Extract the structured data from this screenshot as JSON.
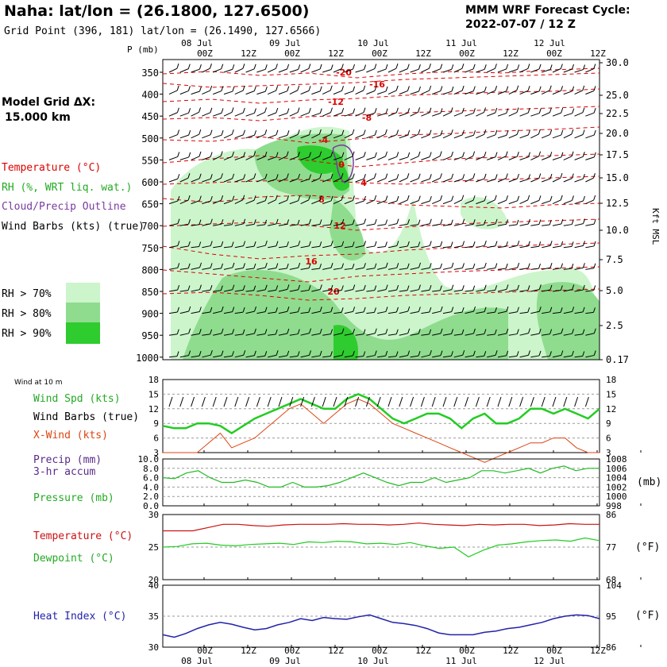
{
  "header": {
    "station_title": "Naha:  lat/lon = (26.1800, 127.6500)",
    "grid_point": "Grid Point (396, 181) lat/lon = (26.1490, 127.6566)",
    "forecast_title": "MMM WRF Forecast Cycle:",
    "forecast_cycle": "2022-07-07 / 12  Z",
    "model_grid_label": "Model Grid ΔX:",
    "model_grid_value": "15.000 km"
  },
  "legend": {
    "temperature": "Temperature (°C)",
    "rh": "RH (%, WRT liq. wat.)",
    "cloud": "Cloud/Precip Outline",
    "wind": "Wind Barbs (kts) (true)",
    "rh70": "RH > 70%",
    "rh80": "RH > 80%",
    "rh90": "RH > 90%",
    "colors": {
      "rh70": "#ccf5cc",
      "rh80": "#8fdc8f",
      "rh90": "#2ecc2e",
      "temp": "#dd0000",
      "cloud": "#7a3aa0"
    }
  },
  "time_axis": {
    "hour_labels": [
      "00Z",
      "12Z",
      "00Z",
      "12Z",
      "00Z",
      "12Z",
      "00Z",
      "12Z",
      "00Z",
      "12Z"
    ],
    "date_labels": [
      "08 Jul",
      "09 Jul",
      "10 Jul",
      "11 Jul",
      "12 Jul"
    ]
  },
  "panels": {
    "wind10m_title": "Wind at 10 m",
    "wind_spd_label": "Wind Spd (kts)",
    "wind_barbs_label": "Wind Barbs (true)",
    "xwind_label": "X-Wind (kts)",
    "precip_label": "Precip (mm)",
    "precip_sub": "3-hr accum",
    "pressure_label": "Pressure (mb)",
    "temp_label": "Temperature (°C)",
    "dew_label": "Dewpoint (°C)",
    "heat_label": "Heat Index (°C)",
    "mb_unit": "(mb)",
    "f_unit": "(°F)",
    "f_unit2": "(°F)",
    "kft_label": "Kft MSL",
    "p_label": "P (mb)"
  },
  "chart_data": [
    {
      "type": "contour",
      "name": "upper",
      "pressure_ticks": [
        "350",
        "400",
        "450",
        "500",
        "550",
        "600",
        "650",
        "700",
        "750",
        "800",
        "850",
        "900",
        "950",
        "1000"
      ],
      "height_ticks": [
        "30.0",
        "25.0",
        "22.5",
        "20.0",
        "17.5",
        "15.0",
        "12.5",
        "10.0",
        "7.5",
        "5.0",
        "2.5",
        "0.17"
      ],
      "contour_labels": [
        "-20",
        "-16",
        "-12",
        "-8",
        "-4",
        "0",
        "4",
        "8",
        "12",
        "16",
        "20"
      ]
    },
    {
      "type": "line",
      "name": "wind",
      "ylim": [
        3,
        18
      ],
      "left_ticks": [
        "18",
        "15",
        "12",
        "9",
        "6",
        "3"
      ],
      "right_ticks": [
        "18",
        "15",
        "12",
        "9",
        "6",
        "3"
      ],
      "series": [
        {
          "name": "Wind Spd (kts)",
          "color": "#22cc22",
          "values": [
            8.5,
            8,
            8,
            9,
            9,
            8.5,
            7,
            8.5,
            10,
            11,
            12,
            13,
            14,
            13,
            12,
            12,
            14,
            15,
            14,
            12,
            10,
            9,
            10,
            11,
            11,
            10,
            8,
            10,
            11,
            9,
            9,
            10,
            12,
            12,
            11,
            12,
            11,
            10,
            12
          ]
        },
        {
          "name": "X-Wind (kts)",
          "color": "#dd4411",
          "values": [
            3,
            3,
            3,
            3,
            5,
            7,
            4,
            5,
            6,
            8,
            10,
            12,
            13,
            11,
            9,
            11,
            13,
            14,
            13,
            11,
            9,
            8,
            7,
            6,
            5,
            4,
            3,
            2,
            1,
            2,
            3,
            4,
            5,
            5,
            6,
            6,
            4,
            3,
            3
          ]
        }
      ]
    },
    {
      "type": "line",
      "name": "pressure",
      "left_ticks": [
        "10.0",
        "8.0",
        "6.0",
        "4.0",
        "2.0",
        "0.0"
      ],
      "right_ticks": [
        "1008",
        "1006",
        "1004",
        "1002",
        "1000",
        "998"
      ],
      "series": [
        {
          "name": "Pressure (mb)",
          "color": "#22bb22",
          "values": [
            1004,
            1003.8,
            1005,
            1005.5,
            1004,
            1003,
            1003,
            1003.5,
            1003,
            1002,
            1002,
            1003,
            1002,
            1002,
            1002.3,
            1003,
            1004,
            1005,
            1004,
            1003,
            1002.3,
            1003,
            1003,
            1004,
            1003,
            1003.5,
            1004,
            1005.5,
            1005.5,
            1005,
            1005.5,
            1006,
            1005,
            1006,
            1006.5,
            1005.5,
            1006,
            1006
          ]
        }
      ]
    },
    {
      "type": "line",
      "name": "temperature",
      "left_ticks": [
        "30",
        "25",
        "20"
      ],
      "right_ticks": [
        "86",
        "77",
        "68"
      ],
      "series": [
        {
          "name": "Temperature (°C)",
          "color": "#cc1111",
          "values": [
            27.5,
            27.5,
            27.5,
            28,
            28.5,
            28.5,
            28.3,
            28.2,
            28.4,
            28.5,
            28.5,
            28.5,
            28.6,
            28.5,
            28.5,
            28.4,
            28.5,
            28.7,
            28.5,
            28.4,
            28.3,
            28.5,
            28.4,
            28.5,
            28.5,
            28.3,
            28.4,
            28.6,
            28.5,
            28.5
          ]
        },
        {
          "name": "Dewpoint (°C)",
          "color": "#22cc22",
          "values": [
            25,
            25.1,
            25.5,
            25.6,
            25.3,
            25.2,
            25.4,
            25.5,
            25.6,
            25.4,
            25.8,
            25.7,
            25.9,
            25.8,
            25.5,
            25.6,
            25.4,
            25.7,
            25.2,
            24.8,
            25,
            23.5,
            24.5,
            25.3,
            25.5,
            25.8,
            26,
            26.1,
            25.9,
            26.4,
            26
          ]
        }
      ]
    },
    {
      "type": "line",
      "name": "heat",
      "left_ticks": [
        "40",
        "35",
        "30"
      ],
      "right_ticks": [
        "104",
        "95",
        "86"
      ],
      "series": [
        {
          "name": "Heat Index (°C)",
          "color": "#2222aa",
          "values": [
            32,
            31.6,
            32.2,
            33,
            33.6,
            34,
            33.7,
            33.2,
            32.8,
            33,
            33.6,
            34,
            34.6,
            34.3,
            34.8,
            34.6,
            34.5,
            34.9,
            35.2,
            34.6,
            34,
            33.8,
            33.5,
            33,
            32.3,
            32,
            32,
            32,
            32.4,
            32.6,
            33,
            33.2,
            33.6,
            34,
            34.6,
            35,
            35.2,
            35.1,
            34.6
          ]
        }
      ]
    }
  ]
}
